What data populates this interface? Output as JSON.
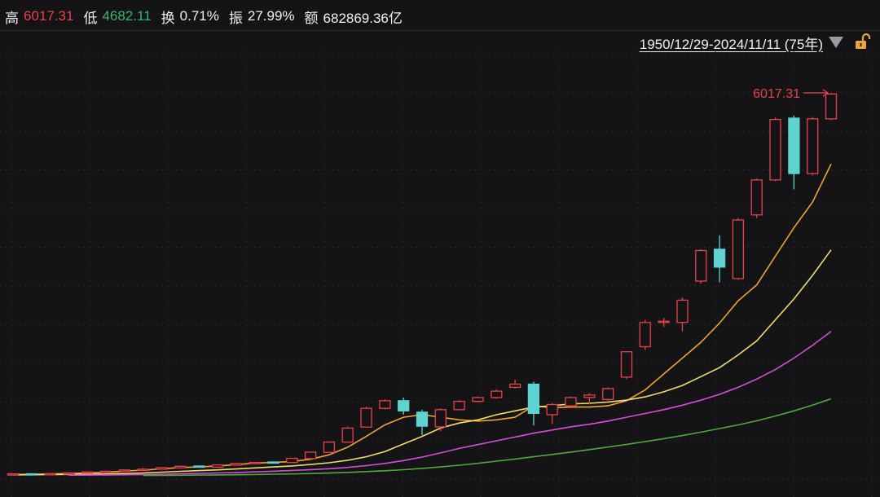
{
  "stats": [
    {
      "label": "高",
      "value": "6017.31",
      "tone": "red"
    },
    {
      "label": "低",
      "value": "4682.11",
      "tone": "green"
    },
    {
      "label": "换",
      "value": "0.71%",
      "tone": "white"
    },
    {
      "label": "振",
      "value": "27.99%",
      "tone": "white"
    },
    {
      "label": "额",
      "value": "682869.36亿",
      "tone": "white"
    }
  ],
  "range_label": "1950/12/29-2024/11/11 (75年)",
  "colors": {
    "up": "#e8424a",
    "down": "#5fd3d0",
    "ma1": "#f3a331",
    "ma2": "#f2dc6b",
    "ma3": "#d84cdb",
    "ma4": "#4fa83d",
    "grid": "#26262b"
  },
  "chart_data": {
    "type": "candlestick",
    "annotation": {
      "label": "6017.31",
      "value": 6017.31
    },
    "candles": [
      {
        "o": 20,
        "c": 31,
        "h": 34,
        "l": 18
      },
      {
        "o": 32,
        "c": 24,
        "h": 35,
        "l": 20
      },
      {
        "o": 25,
        "c": 34,
        "h": 37,
        "l": 22
      },
      {
        "o": 34,
        "c": 46,
        "h": 50,
        "l": 31
      },
      {
        "o": 45,
        "c": 60,
        "h": 64,
        "l": 42
      },
      {
        "o": 58,
        "c": 72,
        "h": 76,
        "l": 55
      },
      {
        "o": 71,
        "c": 92,
        "h": 96,
        "l": 68
      },
      {
        "o": 90,
        "c": 104,
        "h": 125,
        "l": 86
      },
      {
        "o": 104,
        "c": 128,
        "h": 132,
        "l": 100
      },
      {
        "o": 126,
        "c": 150,
        "h": 154,
        "l": 122
      },
      {
        "o": 154,
        "c": 136,
        "h": 160,
        "l": 128
      },
      {
        "o": 136,
        "c": 172,
        "h": 176,
        "l": 132
      },
      {
        "o": 170,
        "c": 195,
        "h": 200,
        "l": 166
      },
      {
        "o": 193,
        "c": 210,
        "h": 215,
        "l": 188
      },
      {
        "o": 218,
        "c": 208,
        "h": 226,
        "l": 204
      },
      {
        "o": 208,
        "c": 275,
        "h": 282,
        "l": 205
      },
      {
        "o": 270,
        "c": 372,
        "h": 380,
        "l": 265
      },
      {
        "o": 368,
        "c": 530,
        "h": 540,
        "l": 360
      },
      {
        "o": 530,
        "c": 750,
        "h": 775,
        "l": 520
      },
      {
        "o": 765,
        "c": 1060,
        "h": 1085,
        "l": 760
      },
      {
        "o": 1060,
        "c": 1180,
        "h": 1200,
        "l": 1045
      },
      {
        "o": 1180,
        "c": 1020,
        "h": 1230,
        "l": 960
      },
      {
        "o": 1000,
        "c": 780,
        "h": 1040,
        "l": 640
      },
      {
        "o": 770,
        "c": 1040,
        "h": 1060,
        "l": 700
      },
      {
        "o": 1040,
        "c": 1170,
        "h": 1190,
        "l": 1030
      },
      {
        "o": 1170,
        "c": 1230,
        "h": 1245,
        "l": 1150
      },
      {
        "o": 1230,
        "c": 1330,
        "h": 1360,
        "l": 1210
      },
      {
        "o": 1390,
        "c": 1440,
        "h": 1510,
        "l": 1370
      },
      {
        "o": 1440,
        "c": 980,
        "h": 1480,
        "l": 790
      },
      {
        "o": 960,
        "c": 1120,
        "h": 1140,
        "l": 810
      },
      {
        "o": 1100,
        "c": 1230,
        "h": 1250,
        "l": 1060
      },
      {
        "o": 1230,
        "c": 1270,
        "h": 1300,
        "l": 1120
      },
      {
        "o": 1200,
        "c": 1370,
        "h": 1390,
        "l": 1180
      },
      {
        "o": 1550,
        "c": 1950,
        "h": 1960,
        "l": 1520
      },
      {
        "o": 2030,
        "c": 2410,
        "h": 2450,
        "l": 1980
      },
      {
        "o": 2420,
        "c": 2430,
        "h": 2480,
        "l": 2340
      },
      {
        "o": 2410,
        "c": 2760,
        "h": 2800,
        "l": 2270
      },
      {
        "o": 3060,
        "c": 3540,
        "h": 3560,
        "l": 3020
      },
      {
        "o": 3560,
        "c": 3280,
        "h": 3780,
        "l": 3040
      },
      {
        "o": 3100,
        "c": 4020,
        "h": 4050,
        "l": 3080
      },
      {
        "o": 4100,
        "c": 4650,
        "h": 4670,
        "l": 4050
      },
      {
        "o": 4650,
        "c": 5600,
        "h": 5630,
        "l": 4630
      },
      {
        "o": 5620,
        "c": 4750,
        "h": 5660,
        "l": 4500
      },
      {
        "o": 4750,
        "c": 5610,
        "h": 5640,
        "l": 4720
      },
      {
        "o": 5610,
        "c": 6000,
        "h": 6017.31,
        "l": 5590
      }
    ],
    "ma_series": [
      {
        "values": [
          20,
          26,
          29,
          36,
          45,
          58,
          74,
          90,
          110,
          130,
          140,
          155,
          175,
          200,
          210,
          225,
          260,
          330,
          450,
          620,
          800,
          920,
          960,
          920,
          880,
          860,
          880,
          920,
          1100,
          1070,
          1080,
          1080,
          1100,
          1180,
          1350,
          1600,
          1850,
          2100,
          2400,
          2750,
          3000,
          3450,
          3900,
          4300,
          4900
        ]
      },
      {
        "values": [
          15,
          17,
          19,
          22,
          26,
          30,
          36,
          45,
          57,
          70,
          82,
          93,
          108,
          124,
          140,
          155,
          178,
          205,
          245,
          300,
          380,
          500,
          620,
          750,
          830,
          880,
          960,
          1020,
          1080,
          1100,
          1130,
          1140,
          1160,
          1190,
          1240,
          1320,
          1420,
          1560,
          1700,
          1900,
          2120,
          2450,
          2780,
          3150,
          3550
        ]
      },
      {
        "values": [
          null,
          null,
          null,
          10,
          12,
          14,
          17,
          21,
          26,
          32,
          38,
          45,
          52,
          62,
          72,
          84,
          97,
          112,
          132,
          160,
          195,
          240,
          295,
          360,
          430,
          490,
          550,
          610,
          670,
          720,
          770,
          810,
          860,
          920,
          980,
          1040,
          1110,
          1190,
          1280,
          1390,
          1520,
          1670,
          1850,
          2050,
          2270
        ]
      },
      {
        "values": [
          null,
          null,
          null,
          null,
          null,
          null,
          null,
          5,
          7,
          9,
          11,
          14,
          17,
          21,
          25,
          30,
          36,
          44,
          54,
          66,
          80,
          96,
          116,
          140,
          166,
          196,
          230,
          264,
          300,
          336,
          372,
          412,
          452,
          494,
          538,
          584,
          632,
          686,
          742,
          800,
          864,
          940,
          1020,
          1110,
          1210
        ]
      }
    ]
  }
}
